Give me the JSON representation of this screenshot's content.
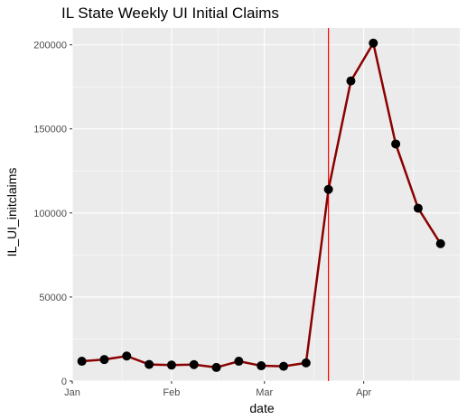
{
  "chart_data": {
    "type": "line",
    "title": "IL State Weekly UI Initial Claims",
    "xlabel": "date",
    "ylabel": "IL_UI_initclaims",
    "x": [
      "2020-01-04",
      "2020-01-11",
      "2020-01-18",
      "2020-01-25",
      "2020-02-01",
      "2020-02-08",
      "2020-02-15",
      "2020-02-22",
      "2020-02-29",
      "2020-03-07",
      "2020-03-14",
      "2020-03-21",
      "2020-03-28",
      "2020-04-04",
      "2020-04-11",
      "2020-04-18",
      "2020-04-25"
    ],
    "series": [
      {
        "values": [
          11800,
          12800,
          14900,
          9900,
          9500,
          9800,
          8100,
          11800,
          9100,
          8800,
          10800,
          114000,
          178500,
          201000,
          141000,
          102800,
          81700
        ]
      }
    ],
    "xlim": [
      "2020-01-01",
      "2020-05-01"
    ],
    "ylim": [
      0,
      210000
    ],
    "xticks": [
      {
        "date": "2020-01-01",
        "label": "Jan"
      },
      {
        "date": "2020-02-01",
        "label": "Feb"
      },
      {
        "date": "2020-03-01",
        "label": "Mar"
      },
      {
        "date": "2020-04-01",
        "label": "Apr"
      }
    ],
    "yticks": [
      0,
      50000,
      100000,
      150000,
      200000
    ],
    "vline": {
      "date": "2020-03-21",
      "color": "#ff0000"
    },
    "grid": true,
    "colors": {
      "panel": "#ebebeb",
      "grid": "#ffffff",
      "line": "#8b0000",
      "point": "#000000"
    }
  }
}
